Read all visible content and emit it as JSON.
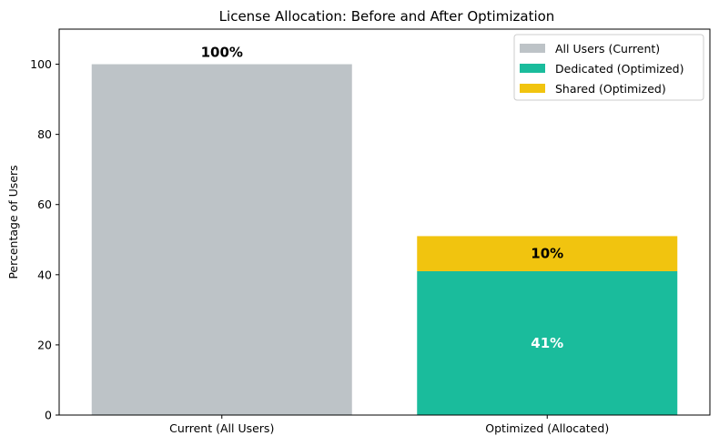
{
  "chart_data": {
    "type": "bar",
    "title": "License Allocation: Before and After Optimization",
    "xlabel": "",
    "ylabel": "Percentage of Users",
    "ylim": [
      0,
      110
    ],
    "yticks": [
      0,
      20,
      40,
      60,
      80,
      100
    ],
    "categories": [
      "Current (All Users)",
      "Optimized (Allocated)"
    ],
    "series": [
      {
        "name": "All Users (Current)",
        "color": "#bdc3c7",
        "values": [
          100,
          null
        ],
        "labels": [
          "100%",
          null
        ],
        "label_color": "#000000"
      },
      {
        "name": "Dedicated (Optimized)",
        "color": "#1abc9c",
        "values": [
          null,
          41
        ],
        "labels": [
          null,
          "41%"
        ],
        "label_color": "#ffffff"
      },
      {
        "name": "Shared (Optimized)",
        "color": "#f1c40f",
        "values": [
          null,
          10
        ],
        "labels": [
          null,
          "10%"
        ],
        "label_color": "#000000"
      }
    ],
    "stacked": true,
    "grid": false,
    "legend_position": "top-right"
  }
}
